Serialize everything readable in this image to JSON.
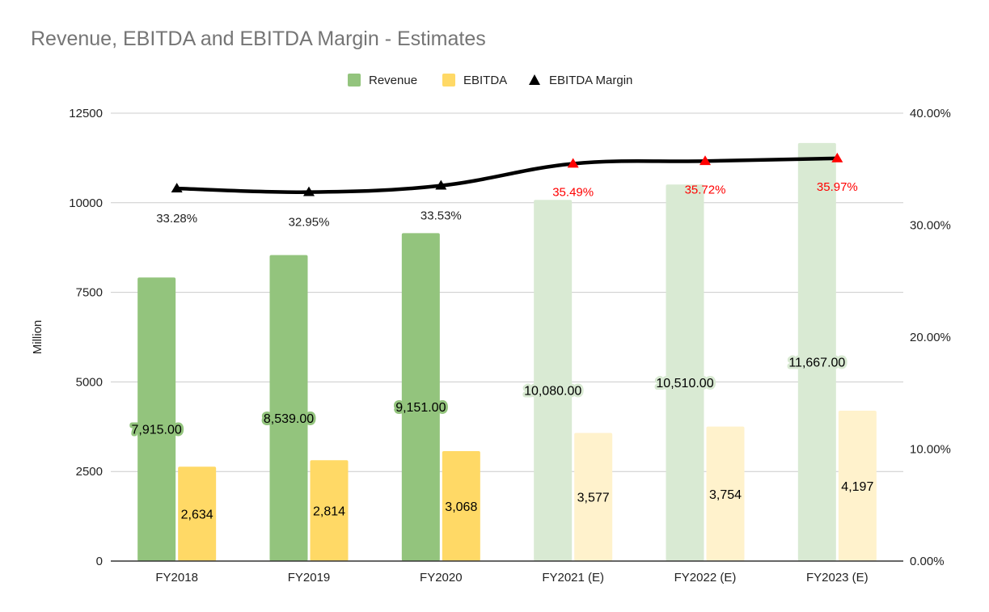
{
  "chart_data": {
    "type": "bar",
    "title": "Revenue, EBITDA and EBITDA Margin - Estimates",
    "categories": [
      "FY2018",
      "FY2019",
      "FY2020",
      "FY2021 (E)",
      "FY2022 (E)",
      "FY2023 (E)"
    ],
    "estimate_flags": [
      false,
      false,
      false,
      true,
      true,
      true
    ],
    "series": [
      {
        "name": "Revenue",
        "type": "bar",
        "axis": "left",
        "color": "#93c47d",
        "estimate_color": "#d9ead3",
        "values": [
          7915,
          8539,
          9151,
          10080,
          10510,
          11667
        ],
        "labels": [
          "7,915.00",
          "8,539.00",
          "9,151.00",
          "10,080.00",
          "10,510.00",
          "11,667.00"
        ]
      },
      {
        "name": "EBITDA",
        "type": "bar",
        "axis": "left",
        "color": "#ffd966",
        "estimate_color": "#fff2cc",
        "values": [
          2634,
          2814,
          3068,
          3577,
          3754,
          4197
        ],
        "labels": [
          "2,634",
          "2,814",
          "3,068",
          "3,577",
          "3,754",
          "4,197"
        ]
      },
      {
        "name": "EBITDA Margin",
        "type": "line",
        "axis": "right",
        "color": "#000000",
        "estimate_marker_color": "#ff0000",
        "estimate_label_color": "#ff0000",
        "values": [
          33.28,
          32.95,
          33.53,
          35.49,
          35.72,
          35.97
        ],
        "labels": [
          "33.28%",
          "32.95%",
          "33.53%",
          "35.49%",
          "35.72%",
          "35.97%"
        ]
      }
    ],
    "ylabel": "Million",
    "xlabel": "",
    "ylim": [
      0,
      12500
    ],
    "y_ticks": [
      "0",
      "2500",
      "5000",
      "7500",
      "10000",
      "12500"
    ],
    "y2lim": [
      0,
      40
    ],
    "y2_ticks": [
      "0.00%",
      "10.00%",
      "20.00%",
      "30.00%",
      "40.00%"
    ],
    "grid": true,
    "legend_position": "top-center"
  }
}
